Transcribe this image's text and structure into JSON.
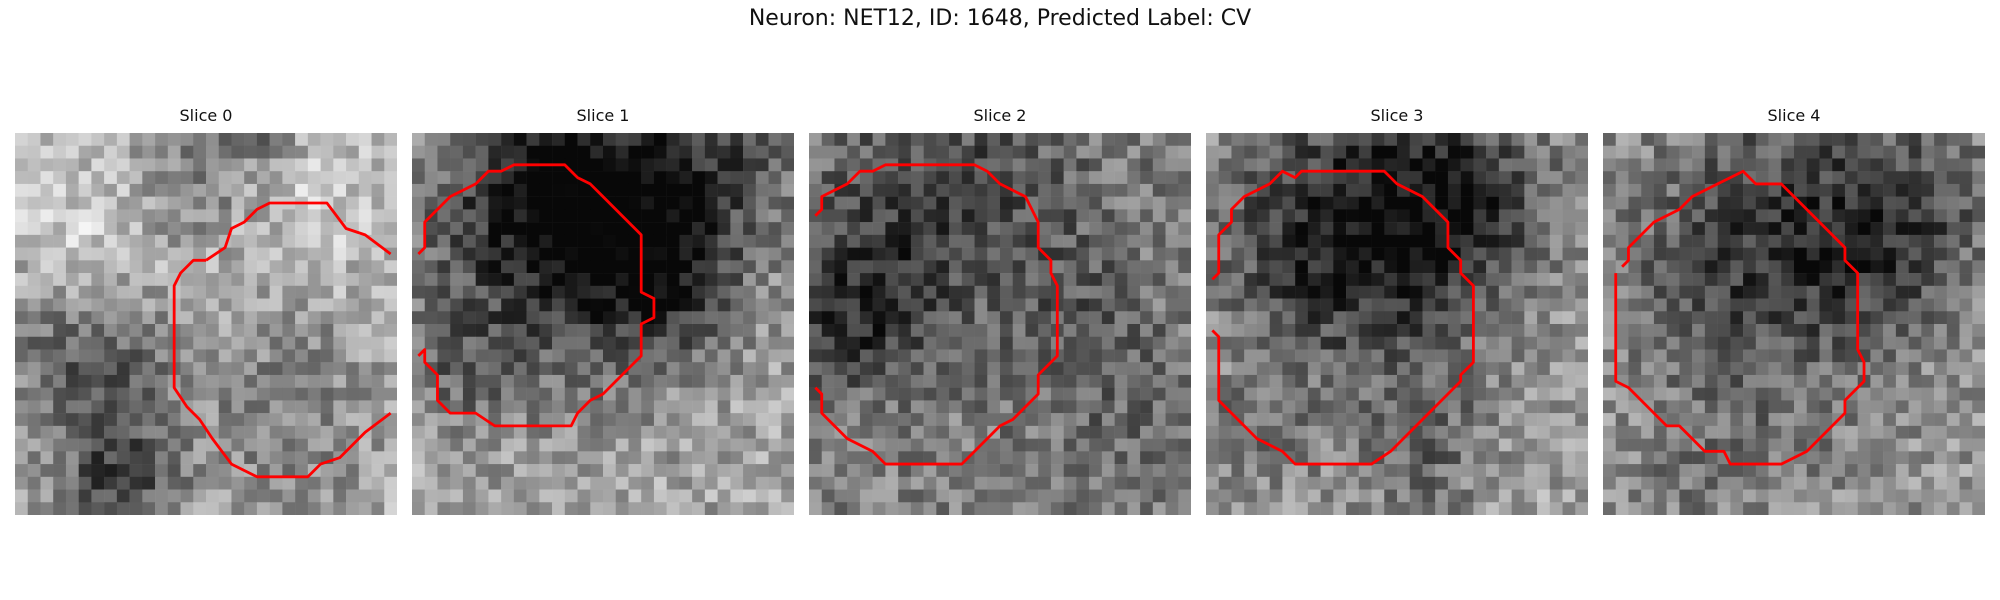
{
  "figure": {
    "title": "Neuron: NET12, ID: 1648, Predicted Label: CV"
  },
  "colors": {
    "contour": "#ff0000",
    "background": "#ffffff"
  },
  "slices": [
    {
      "title": "Slice 0"
    },
    {
      "title": "Slice 1"
    },
    {
      "title": "Slice 2"
    },
    {
      "title": "Slice 3"
    },
    {
      "title": "Slice 4"
    }
  ]
}
